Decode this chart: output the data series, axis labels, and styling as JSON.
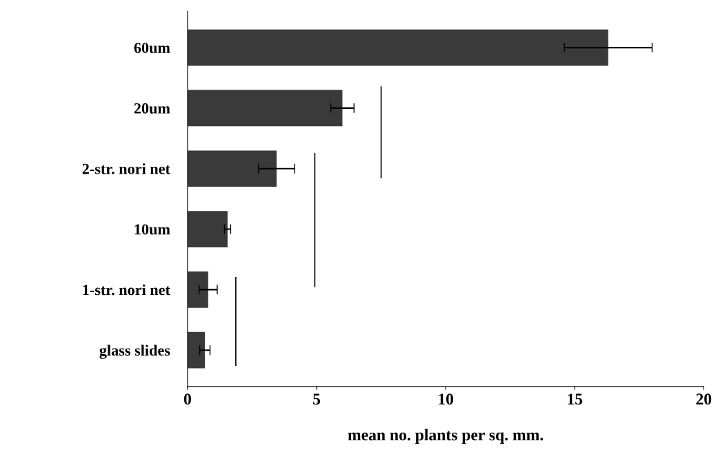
{
  "chart_data": {
    "type": "bar",
    "orientation": "horizontal",
    "xlabel": "mean no. plants per sq. mm.",
    "categories": [
      "60um",
      "20um",
      "2-str. nori net",
      "10um",
      "1-str. nori net",
      "glass slides"
    ],
    "values": [
      16.3,
      6.0,
      3.45,
      1.55,
      0.8,
      0.67
    ],
    "errors": [
      1.7,
      0.45,
      0.7,
      0.12,
      0.35,
      0.2
    ],
    "color": "#3a3a3a",
    "xlim": [
      0,
      20
    ],
    "xticks": [
      0,
      5,
      10,
      15,
      20
    ],
    "grid": false,
    "legend": false
  }
}
